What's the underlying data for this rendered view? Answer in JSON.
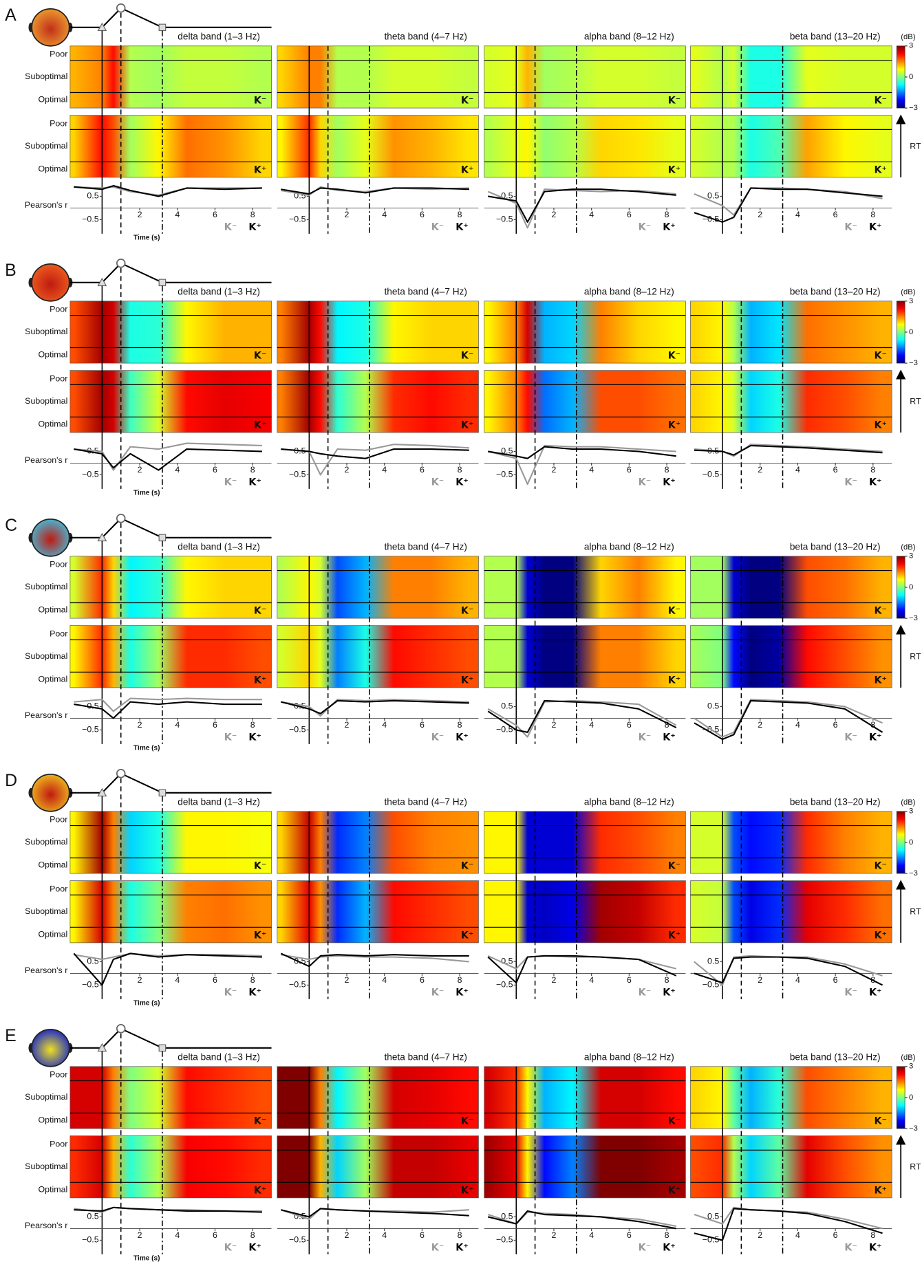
{
  "figure": {
    "bands": [
      "delta band (1–3 Hz)",
      "theta band (4–7 Hz)",
      "alpha band (8–12 Hz)",
      "beta band (13–20 Hz)"
    ],
    "rows": [
      "Poor",
      "Suboptimal",
      "Optimal"
    ],
    "condition_legend": [
      {
        "name": "K⁻",
        "color": "#999999"
      },
      {
        "name": "K⁺",
        "color": "#000000"
      }
    ],
    "colorbar": {
      "unit": "(dB)",
      "lim": [
        -3,
        3
      ],
      "ticks": [
        3,
        0,
        {
          "value": -3,
          "label": "−3"
        }
      ],
      "colormap": [
        "#000080",
        "#0000ff",
        "#0080ff",
        "#00ffff",
        "#80ff80",
        "#ffff00",
        "#ff8000",
        "#ff0000",
        "#800000"
      ]
    },
    "rt_label": "RT",
    "r_label": "Pearson's r",
    "rlim": [
      -1,
      1
    ],
    "rticks": [
      0.5,
      {
        "value": -0.5,
        "label": "−0.5"
      }
    ],
    "time_label": "Time (s)",
    "xlim": [
      -1.7,
      9
    ],
    "xticks": [
      2,
      4,
      6,
      8
    ],
    "event_times": [
      0,
      1,
      3.2
    ],
    "times": [
      -1.5,
      0,
      0.6,
      1.5,
      3,
      4.5,
      6.5,
      8.5
    ]
  },
  "panels": [
    {
      "label": "A",
      "head": [
        "#c0301a",
        "#f0a030"
      ],
      "bands": [
        {
          "heat_k_minus": [
            1.2,
            1.5,
            2.2,
            0.3,
            0.2,
            0.4,
            0.4,
            0.3
          ],
          "heat_k_plus": [
            1.0,
            2.2,
            1.8,
            0.2,
            0.8,
            1.6,
            1.4,
            1.0
          ],
          "r": [
            [
              0.9,
              0.85,
              0.9,
              0.7,
              0.55,
              0.85,
              0.85,
              0.85
            ],
            [
              0.9,
              0.8,
              0.95,
              0.75,
              0.5,
              0.85,
              0.8,
              0.85
            ]
          ]
        },
        {
          "heat_k_minus": [
            1.0,
            1.5,
            1.5,
            0.3,
            0.3,
            0.5,
            0.5,
            0.4
          ],
          "heat_k_plus": [
            0.8,
            2.0,
            1.0,
            0.2,
            0.6,
            1.4,
            1.2,
            0.9
          ],
          "r": [
            [
              0.75,
              0.55,
              0.9,
              0.75,
              0.7,
              0.85,
              0.8,
              0.85
            ],
            [
              0.8,
              0.6,
              0.85,
              0.8,
              0.65,
              0.85,
              0.85,
              0.8
            ]
          ]
        },
        {
          "heat_k_minus": [
            0.5,
            0.6,
            1.2,
            0.2,
            0.3,
            0.5,
            0.5,
            0.4
          ],
          "heat_k_plus": [
            0.3,
            0.6,
            0.8,
            0.1,
            0.3,
            1.0,
            0.9,
            0.6
          ],
          "r": [
            [
              0.7,
              0.2,
              -0.85,
              0.8,
              0.75,
              0.7,
              0.75,
              0.6
            ],
            [
              0.5,
              0.3,
              -0.6,
              0.7,
              0.8,
              0.8,
              0.7,
              0.55
            ]
          ]
        },
        {
          "heat_k_minus": [
            0.6,
            0.3,
            0.5,
            -0.6,
            -0.6,
            0.6,
            0.5,
            0.5
          ],
          "heat_k_plus": [
            0.5,
            0.3,
            0.3,
            -0.6,
            -0.3,
            1.3,
            0.8,
            0.6
          ],
          "r": [
            [
              0.6,
              0.1,
              -0.3,
              0.85,
              0.85,
              0.8,
              0.7,
              0.4
            ],
            [
              -0.2,
              -0.6,
              -0.4,
              0.85,
              0.8,
              0.8,
              0.65,
              0.5
            ]
          ]
        }
      ]
    },
    {
      "label": "B",
      "head": [
        "#c01a10",
        "#f06020"
      ],
      "bands": [
        {
          "heat_k_minus": [
            1.8,
            2.8,
            2.5,
            -0.6,
            -0.5,
            0.8,
            1.2,
            1.2
          ],
          "heat_k_plus": [
            1.8,
            2.8,
            2.5,
            -0.4,
            0.5,
            2.2,
            2.4,
            2.3
          ],
          "r": [
            [
              0.6,
              0.5,
              -0.3,
              0.7,
              0.6,
              0.85,
              0.8,
              0.75
            ],
            [
              0.6,
              0.4,
              -0.2,
              0.4,
              -0.3,
              0.6,
              0.55,
              0.5
            ]
          ]
        },
        {
          "heat_k_minus": [
            1.5,
            2.8,
            2.2,
            -0.8,
            -0.6,
            0.8,
            1.0,
            1.0
          ],
          "heat_k_plus": [
            1.5,
            2.8,
            2.2,
            -0.5,
            0.3,
            2.0,
            2.2,
            2.0
          ],
          "r": [
            [
              0.6,
              0.5,
              -0.5,
              0.6,
              0.55,
              0.8,
              0.75,
              0.65
            ],
            [
              0.6,
              0.5,
              0.4,
              0.3,
              0.2,
              0.6,
              0.6,
              0.55
            ]
          ]
        },
        {
          "heat_k_minus": [
            0.8,
            1.5,
            2.5,
            -1.2,
            -1.0,
            1.5,
            1.0,
            0.8
          ],
          "heat_k_plus": [
            0.8,
            1.5,
            2.2,
            -1.6,
            -1.2,
            1.8,
            1.8,
            1.6
          ],
          "r": [
            [
              0.5,
              0.2,
              -0.9,
              0.75,
              0.7,
              0.7,
              0.6,
              0.5
            ],
            [
              0.5,
              0.3,
              0.2,
              0.7,
              0.6,
              0.6,
              0.5,
              0.3
            ]
          ]
        },
        {
          "heat_k_minus": [
            1.0,
            0.8,
            0.3,
            -1.2,
            -0.9,
            1.6,
            1.4,
            1.2
          ],
          "heat_k_plus": [
            1.0,
            0.8,
            0.5,
            -1.0,
            -0.6,
            2.0,
            1.8,
            1.5
          ],
          "r": [
            [
              0.6,
              0.5,
              0.3,
              0.8,
              0.75,
              0.7,
              0.6,
              0.5
            ],
            [
              0.55,
              0.5,
              0.35,
              0.75,
              0.7,
              0.65,
              0.55,
              0.45
            ]
          ]
        }
      ]
    },
    {
      "label": "C",
      "head": [
        "#c01a10",
        "#40c0e0"
      ],
      "bands": [
        {
          "heat_k_minus": [
            0.5,
            2.0,
            1.0,
            -0.8,
            -0.5,
            0.8,
            1.0,
            1.0
          ],
          "heat_k_plus": [
            0.8,
            2.0,
            1.2,
            -0.6,
            0.2,
            2.0,
            2.0,
            1.8
          ],
          "r": [
            [
              0.7,
              0.8,
              0.3,
              0.85,
              0.8,
              0.85,
              0.8,
              0.8
            ],
            [
              0.6,
              0.4,
              0.0,
              0.7,
              0.6,
              0.7,
              0.6,
              0.6
            ]
          ]
        },
        {
          "heat_k_minus": [
            0.3,
            0.8,
            0.5,
            -1.8,
            -1.2,
            1.5,
            1.5,
            1.2
          ],
          "heat_k_plus": [
            0.5,
            1.0,
            0.6,
            -1.5,
            -0.6,
            2.2,
            2.0,
            1.8
          ],
          "r": [
            [
              0.7,
              0.5,
              0.1,
              0.8,
              0.75,
              0.8,
              0.75,
              0.7
            ],
            [
              0.7,
              0.4,
              0.2,
              0.75,
              0.7,
              0.75,
              0.7,
              0.65
            ]
          ]
        },
        {
          "heat_k_minus": [
            0.3,
            0.3,
            -2.5,
            -3,
            -3,
            1.0,
            1.5,
            0.8
          ],
          "heat_k_plus": [
            0.3,
            0.3,
            -2.5,
            -3,
            -3,
            1.5,
            1.5,
            1.0
          ],
          "r": [
            [
              0.4,
              -0.3,
              -0.8,
              0.7,
              0.75,
              0.7,
              0.6,
              -0.3
            ],
            [
              0.3,
              -0.5,
              -0.6,
              0.75,
              0.7,
              0.65,
              0.4,
              -0.4
            ]
          ]
        },
        {
          "heat_k_minus": [
            0.2,
            0.2,
            -2.5,
            -3,
            -3,
            1.8,
            1.6,
            1.2
          ],
          "heat_k_plus": [
            0.2,
            0.0,
            -2.2,
            -3,
            -2.8,
            2.2,
            1.8,
            1.4
          ],
          "r": [
            [
              0.0,
              -0.8,
              -0.6,
              0.8,
              0.75,
              0.7,
              0.5,
              -0.2
            ],
            [
              -0.2,
              -0.9,
              -0.7,
              0.75,
              0.7,
              0.65,
              0.4,
              -0.6
            ]
          ]
        }
      ]
    },
    {
      "label": "D",
      "head": [
        "#c01a10",
        "#f0c020"
      ],
      "bands": [
        {
          "heat_k_minus": [
            0.8,
            2.8,
            1.5,
            -1.0,
            -0.6,
            0.8,
            0.8,
            0.7
          ],
          "heat_k_plus": [
            0.8,
            2.5,
            1.5,
            -0.6,
            0.0,
            1.5,
            1.6,
            1.4
          ],
          "r": [
            [
              0.8,
              0.6,
              0.7,
              0.85,
              0.75,
              0.8,
              0.8,
              0.75
            ],
            [
              0.85,
              -0.5,
              0.6,
              0.85,
              0.7,
              0.8,
              0.75,
              0.7
            ]
          ]
        },
        {
          "heat_k_minus": [
            1.0,
            2.6,
            1.5,
            -2.0,
            -1.5,
            1.8,
            1.5,
            1.4
          ],
          "heat_k_plus": [
            1.0,
            2.4,
            1.4,
            -2.0,
            -1.2,
            2.2,
            2.0,
            1.8
          ],
          "r": [
            [
              0.8,
              0.6,
              0.7,
              0.75,
              0.7,
              0.7,
              0.65,
              0.5
            ],
            [
              0.85,
              0.3,
              0.75,
              0.8,
              0.75,
              0.8,
              0.75,
              0.75
            ]
          ]
        },
        {
          "heat_k_minus": [
            0.8,
            0.8,
            -2.5,
            -2.5,
            -2.5,
            2.0,
            1.8,
            1.5
          ],
          "heat_k_plus": [
            0.8,
            0.8,
            -2.5,
            -2.6,
            -2.4,
            2.8,
            2.6,
            2.0
          ],
          "r": [
            [
              0.75,
              0.2,
              0.7,
              0.75,
              0.7,
              0.7,
              0.6,
              0.2
            ],
            [
              0.7,
              -0.4,
              0.7,
              0.75,
              0.75,
              0.7,
              0.6,
              -0.1
            ]
          ]
        },
        {
          "heat_k_minus": [
            0.5,
            0.5,
            -1.8,
            -2.2,
            -2.0,
            2.0,
            1.5,
            1.2
          ],
          "heat_k_plus": [
            0.5,
            0.4,
            -1.8,
            -2.4,
            -2.0,
            2.4,
            2.0,
            1.6
          ],
          "r": [
            [
              0.5,
              -0.5,
              0.7,
              0.75,
              0.7,
              0.7,
              0.4,
              -0.1
            ],
            [
              0.0,
              -0.4,
              0.65,
              0.7,
              0.7,
              0.65,
              0.3,
              -0.5
            ]
          ]
        }
      ]
    },
    {
      "label": "E",
      "head": [
        "#f0e020",
        "#1020d0"
      ],
      "bands": [
        {
          "heat_k_minus": [
            2.5,
            2.5,
            1.5,
            0.0,
            0.5,
            2.2,
            2.0,
            1.8
          ],
          "heat_k_plus": [
            2.0,
            2.5,
            1.2,
            -0.5,
            0.3,
            2.3,
            2.2,
            2.0
          ],
          "r": [
            [
              0.85,
              0.7,
              0.9,
              0.85,
              0.8,
              0.8,
              0.75,
              0.75
            ],
            [
              0.8,
              0.75,
              0.9,
              0.85,
              0.8,
              0.75,
              0.75,
              0.7
            ]
          ]
        },
        {
          "heat_k_minus": [
            3,
            3,
            1.5,
            -0.8,
            0.2,
            2.5,
            2.4,
            2.2
          ],
          "heat_k_plus": [
            3,
            3,
            1.2,
            -1.0,
            0.2,
            2.6,
            2.6,
            2.4
          ],
          "r": [
            [
              0.8,
              0.4,
              0.85,
              0.8,
              0.75,
              0.75,
              0.7,
              0.8
            ],
            [
              0.8,
              0.5,
              0.85,
              0.8,
              0.75,
              0.7,
              0.65,
              0.55
            ]
          ]
        },
        {
          "heat_k_minus": [
            2.5,
            2.0,
            0.8,
            -1.2,
            -0.8,
            2.5,
            2.5,
            2.2
          ],
          "heat_k_plus": [
            2.8,
            2.4,
            0.8,
            -2.2,
            -1.5,
            3.0,
            3.0,
            2.8
          ],
          "r": [
            [
              0.6,
              0.2,
              0.7,
              0.65,
              0.6,
              0.5,
              0.4,
              0.1
            ],
            [
              0.5,
              0.2,
              0.75,
              0.6,
              0.55,
              0.5,
              0.3,
              0.0
            ]
          ]
        },
        {
          "heat_k_minus": [
            1.0,
            0.8,
            -0.2,
            -1.2,
            -0.5,
            1.8,
            1.5,
            1.2
          ],
          "heat_k_plus": [
            1.8,
            2.0,
            0.3,
            -1.0,
            -0.2,
            2.4,
            1.8,
            1.4
          ],
          "r": [
            [
              0.6,
              0.2,
              0.9,
              0.8,
              0.75,
              0.7,
              0.4,
              0.0
            ],
            [
              -0.2,
              -0.5,
              0.85,
              0.8,
              0.75,
              0.65,
              0.3,
              -0.2
            ]
          ]
        }
      ]
    }
  ]
}
